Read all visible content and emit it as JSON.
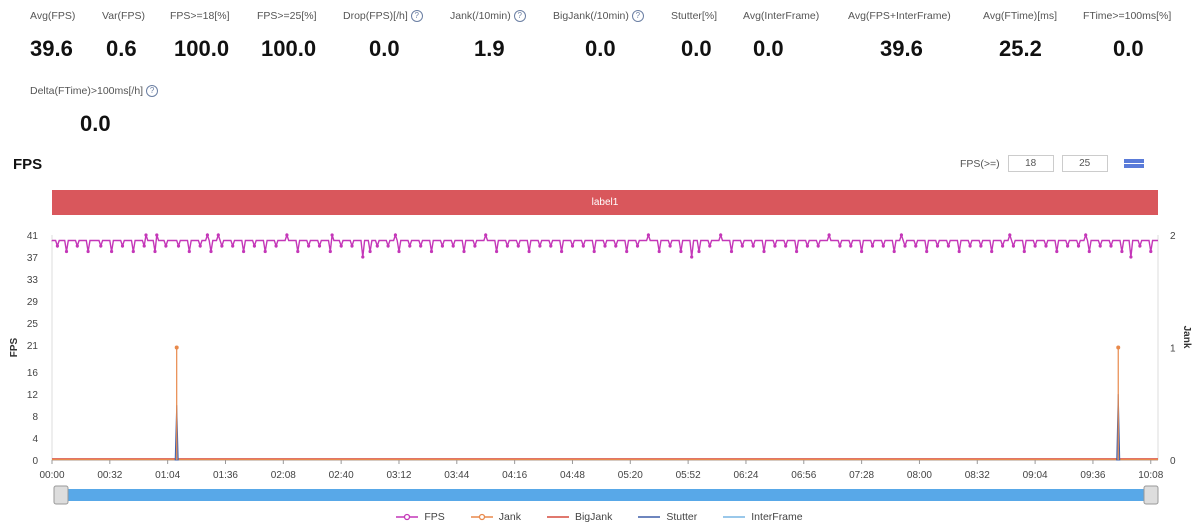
{
  "metrics": [
    {
      "label": "Avg(FPS)",
      "value": "39.6",
      "help": false
    },
    {
      "label": "Var(FPS)",
      "value": "0.6",
      "help": false
    },
    {
      "label": "FPS>=18[%]",
      "value": "100.0",
      "help": false
    },
    {
      "label": "FPS>=25[%]",
      "value": "100.0",
      "help": false
    },
    {
      "label": "Drop(FPS)[/h]",
      "value": "0.0",
      "help": true
    },
    {
      "label": "Jank(/10min)",
      "value": "1.9",
      "help": true
    },
    {
      "label": "BigJank(/10min)",
      "value": "0.0",
      "help": true
    },
    {
      "label": "Stutter[%]",
      "value": "0.0",
      "help": false
    },
    {
      "label": "Avg(InterFrame)",
      "value": "0.0",
      "help": false
    },
    {
      "label": "Avg(FPS+InterFrame)",
      "value": "39.6",
      "help": false
    },
    {
      "label": "Avg(FTime)[ms]",
      "value": "25.2",
      "help": false
    },
    {
      "label": "FTime>=100ms[%]",
      "value": "0.0",
      "help": false
    },
    {
      "label": "Delta(FTime)>100ms[/h]",
      "value": "0.0",
      "help": true
    }
  ],
  "chart_title": "FPS",
  "threshold": {
    "label": "FPS(>=)",
    "low": "18",
    "high": "25"
  },
  "label_bar": "label1",
  "chart_data": {
    "type": "line",
    "xlabel": "",
    "ylabel": "FPS",
    "y2label": "Jank",
    "x_ticks": [
      "00:00",
      "00:32",
      "01:04",
      "01:36",
      "02:08",
      "02:40",
      "03:12",
      "03:44",
      "04:16",
      "04:48",
      "05:20",
      "05:52",
      "06:24",
      "06:56",
      "07:28",
      "08:00",
      "08:32",
      "09:04",
      "09:36",
      "10:08"
    ],
    "y_ticks": [
      0,
      4,
      8,
      12,
      16,
      21,
      25,
      29,
      33,
      37,
      41
    ],
    "y2_ticks": [
      0,
      1,
      2
    ],
    "ylim": [
      0,
      41
    ],
    "y2lim": [
      0,
      2
    ],
    "xlim_seconds": [
      0,
      612
    ],
    "series": [
      {
        "name": "FPS",
        "axis": "left",
        "color": "#c437b8",
        "baseline": 40,
        "dips": [
          [
            3,
            39
          ],
          [
            8,
            38
          ],
          [
            14,
            39
          ],
          [
            20,
            38
          ],
          [
            27,
            39
          ],
          [
            33,
            38
          ],
          [
            39,
            39
          ],
          [
            45,
            38
          ],
          [
            51,
            39
          ],
          [
            57,
            38
          ],
          [
            63,
            39
          ],
          [
            70,
            39
          ],
          [
            76,
            38
          ],
          [
            82,
            39
          ],
          [
            88,
            38
          ],
          [
            94,
            39
          ],
          [
            100,
            39
          ],
          [
            106,
            38
          ],
          [
            112,
            39
          ],
          [
            118,
            38
          ],
          [
            124,
            39
          ],
          [
            130,
            39
          ],
          [
            136,
            38
          ],
          [
            142,
            39
          ],
          [
            148,
            39
          ],
          [
            154,
            38
          ],
          [
            160,
            39
          ],
          [
            166,
            39
          ],
          [
            172,
            37
          ],
          [
            176,
            38
          ],
          [
            180,
            39
          ],
          [
            186,
            39
          ],
          [
            192,
            38
          ],
          [
            198,
            39
          ],
          [
            204,
            39
          ],
          [
            210,
            38
          ],
          [
            216,
            39
          ],
          [
            222,
            39
          ],
          [
            228,
            38
          ],
          [
            234,
            39
          ],
          [
            240,
            39
          ],
          [
            246,
            38
          ],
          [
            252,
            39
          ],
          [
            258,
            39
          ],
          [
            264,
            38
          ],
          [
            270,
            39
          ],
          [
            276,
            39
          ],
          [
            282,
            38
          ],
          [
            288,
            39
          ],
          [
            294,
            39
          ],
          [
            300,
            38
          ],
          [
            306,
            39
          ],
          [
            312,
            39
          ],
          [
            318,
            38
          ],
          [
            324,
            39
          ],
          [
            330,
            39
          ],
          [
            336,
            38
          ],
          [
            342,
            39
          ],
          [
            348,
            38
          ],
          [
            354,
            37
          ],
          [
            358,
            38
          ],
          [
            364,
            39
          ],
          [
            370,
            39
          ],
          [
            376,
            38
          ],
          [
            382,
            39
          ],
          [
            388,
            39
          ],
          [
            394,
            38
          ],
          [
            400,
            39
          ],
          [
            406,
            39
          ],
          [
            412,
            38
          ],
          [
            418,
            39
          ],
          [
            424,
            39
          ],
          [
            430,
            38
          ],
          [
            436,
            39
          ],
          [
            442,
            39
          ],
          [
            448,
            38
          ],
          [
            454,
            39
          ],
          [
            460,
            39
          ],
          [
            466,
            38
          ],
          [
            472,
            39
          ],
          [
            478,
            39
          ],
          [
            484,
            38
          ],
          [
            490,
            39
          ],
          [
            496,
            39
          ],
          [
            502,
            38
          ],
          [
            508,
            39
          ],
          [
            514,
            39
          ],
          [
            520,
            38
          ],
          [
            526,
            39
          ],
          [
            532,
            39
          ],
          [
            538,
            38
          ],
          [
            544,
            39
          ],
          [
            550,
            39
          ],
          [
            556,
            38
          ],
          [
            562,
            39
          ],
          [
            568,
            39
          ],
          [
            574,
            38
          ],
          [
            580,
            39
          ],
          [
            586,
            39
          ],
          [
            592,
            38
          ],
          [
            597,
            37
          ],
          [
            602,
            39
          ],
          [
            608,
            38
          ]
        ],
        "peaks": [
          [
            52,
            41
          ],
          [
            58,
            41
          ],
          [
            86,
            41
          ],
          [
            92,
            41
          ],
          [
            130,
            41
          ],
          [
            155,
            41
          ],
          [
            190,
            41
          ],
          [
            240,
            41
          ],
          [
            330,
            41
          ],
          [
            370,
            41
          ],
          [
            430,
            41
          ],
          [
            470,
            41
          ],
          [
            530,
            41
          ],
          [
            572,
            41
          ]
        ]
      },
      {
        "name": "Jank",
        "axis": "right",
        "color": "#e8894b",
        "spikes": [
          [
            69,
            1
          ],
          [
            590,
            1
          ]
        ]
      },
      {
        "name": "BigJank",
        "axis": "right",
        "color": "#d64b3f",
        "spikes": []
      },
      {
        "name": "Stutter",
        "axis": "left",
        "color": "#3f5fa8",
        "spikes": [
          [
            69,
            10
          ],
          [
            590,
            12
          ]
        ]
      },
      {
        "name": "InterFrame",
        "axis": "left",
        "color": "#79b6e3",
        "spikes": []
      }
    ]
  },
  "colors": {
    "label_bar": "#d9575c",
    "slider": "#58a8e8",
    "accent": "#5a7bd9"
  }
}
